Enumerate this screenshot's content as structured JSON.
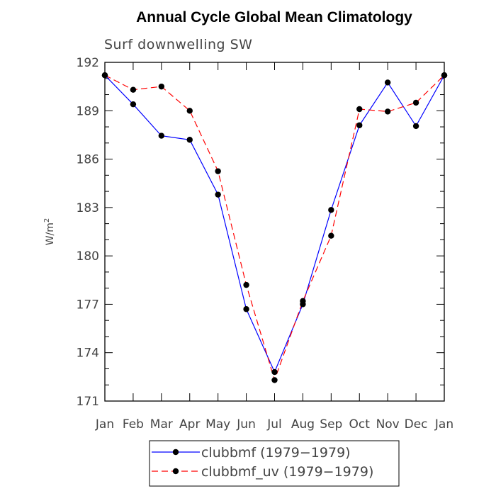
{
  "chart_data": {
    "type": "line",
    "title": "Annual Cycle Global Mean Climatology",
    "subtitle": "Surf downwelling SW",
    "ylabel_base": "W/m",
    "ylabel_sup": "2",
    "xlabel": "",
    "categories": [
      "Jan",
      "Feb",
      "Mar",
      "Apr",
      "May",
      "Jun",
      "Jul",
      "Aug",
      "Sep",
      "Oct",
      "Nov",
      "Dec",
      "Jan"
    ],
    "ylim": [
      171,
      192
    ],
    "yticks": [
      171,
      174,
      177,
      180,
      183,
      186,
      189,
      192
    ],
    "yticks_labels": [
      "171",
      "174",
      "177",
      "180",
      "183",
      "186",
      "189",
      "192"
    ],
    "series": [
      {
        "name": "clubbmf (1979−1979)",
        "color": "#0000ff",
        "dash": "solid",
        "values": [
          191.2,
          189.4,
          187.45,
          187.2,
          183.8,
          176.7,
          172.8,
          177.0,
          182.85,
          188.1,
          190.75,
          188.05,
          191.2
        ]
      },
      {
        "name": "clubbmf_uv (1979−1979)",
        "color": "#ff0000",
        "dash": "dashed",
        "values": [
          191.2,
          190.3,
          190.5,
          189.0,
          185.25,
          178.2,
          172.3,
          177.2,
          181.25,
          189.1,
          188.95,
          189.5,
          191.2
        ]
      }
    ],
    "grid": false,
    "legend_position": "bottom"
  }
}
